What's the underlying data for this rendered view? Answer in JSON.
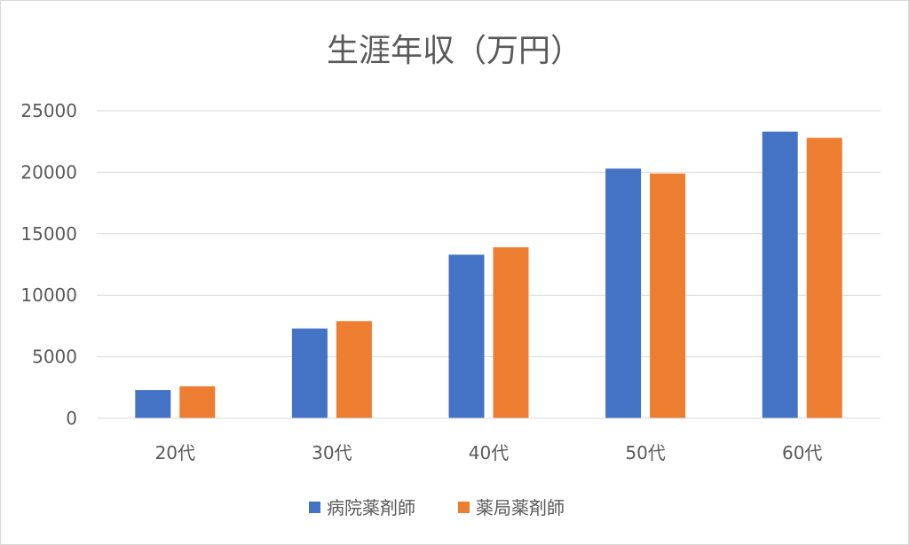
{
  "chart_data": {
    "type": "bar",
    "title": "生涯年収（万円）",
    "categories": [
      "20代",
      "30代",
      "40代",
      "50代",
      "60代"
    ],
    "series": [
      {
        "name": "病院薬剤師",
        "color": "#4472c4",
        "values": [
          2300,
          7300,
          13300,
          20300,
          23300
        ]
      },
      {
        "name": "薬局薬剤師",
        "color": "#ed7d31",
        "values": [
          2600,
          7900,
          13900,
          19900,
          22800
        ]
      }
    ],
    "ylim": [
      0,
      25000
    ],
    "yticks": [
      0,
      5000,
      10000,
      15000,
      20000,
      25000
    ],
    "grid": true,
    "legend_position": "bottom"
  }
}
